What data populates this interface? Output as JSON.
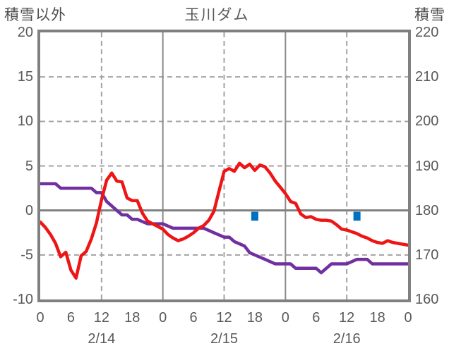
{
  "title": "玉川ダム",
  "left_axis": {
    "label": "積雪以外",
    "ticks": [
      "20",
      "15",
      "10",
      "5",
      "0",
      "-5",
      "-10"
    ],
    "min": -10,
    "max": 20
  },
  "right_axis": {
    "label": "積雪",
    "ticks": [
      "220",
      "210",
      "200",
      "190",
      "180",
      "170",
      "160"
    ],
    "min": 160,
    "max": 220
  },
  "x_axis": {
    "tick_labels": [
      "0",
      "6",
      "12",
      "18",
      "0",
      "6",
      "12",
      "18",
      "0",
      "6",
      "12",
      "18",
      "0"
    ],
    "tick_step_hours": 6,
    "date_labels": [
      "2/14",
      "2/15",
      "2/16"
    ],
    "hours_total": 72
  },
  "colors": {
    "temperature_line": "#ed1515",
    "snow_line": "#7030a0",
    "bar": "#0070c0",
    "border": "#808080",
    "grid_dashed": "#a3a3a3",
    "grid_solid": "#8c8c8c",
    "zero_line": "#808080",
    "text": "#595959"
  },
  "chart_data": {
    "type": "line",
    "title": "玉川ダム",
    "x_unit": "hour",
    "x_start": 0,
    "x_step": 1,
    "x_range_hours": [
      0,
      72
    ],
    "grid": {
      "h_dashed_left_values": [
        15,
        10,
        5,
        -5
      ],
      "h_solid_left_values": [
        0
      ],
      "v_dashed_hours": [
        12,
        36,
        60
      ],
      "v_solid_hours": [
        24,
        48
      ]
    },
    "series": [
      {
        "name": "積雪以外(折れ線・赤)",
        "axis": "left",
        "color": "#ed1515",
        "values": [
          -1.3,
          -1.9,
          -2.7,
          -3.7,
          -5.2,
          -4.7,
          -6.7,
          -7.6,
          -5.1,
          -4.6,
          -3.2,
          -1.4,
          1.2,
          3.4,
          4.2,
          3.3,
          3.2,
          1.4,
          1.1,
          1.1,
          -0.3,
          -1.2,
          -1.5,
          -1.8,
          -2.1,
          -2.7,
          -3.1,
          -3.4,
          -3.2,
          -2.9,
          -2.5,
          -2.0,
          -1.7,
          -1.1,
          -0.1,
          2.2,
          4.4,
          4.7,
          4.4,
          5.3,
          4.8,
          5.2,
          4.5,
          5.1,
          4.9,
          4.2,
          3.3,
          2.6,
          1.9,
          1.0,
          0.8,
          -0.4,
          -0.8,
          -0.7,
          -1.0,
          -1.1,
          -1.1,
          -1.2,
          -1.6,
          -2.1,
          -2.2,
          -2.4,
          -2.6,
          -2.9,
          -3.1,
          -3.4,
          -3.6,
          -3.7,
          -3.4,
          -3.6,
          -3.7,
          -3.8,
          -3.9
        ]
      },
      {
        "name": "積雪(折れ線・紫)",
        "axis": "right",
        "color": "#7030a0",
        "values": [
          186,
          186,
          186,
          186,
          185,
          185,
          185,
          185,
          185,
          185,
          185,
          184,
          184,
          182,
          181,
          180,
          179,
          179,
          178,
          178,
          177.5,
          177,
          177,
          177,
          177,
          176.5,
          176,
          176,
          176,
          176,
          176,
          176,
          176,
          175.5,
          175,
          174.5,
          174,
          174,
          173,
          172.5,
          172,
          170.5,
          170,
          169.5,
          169,
          168.5,
          168,
          168,
          168,
          168,
          167,
          167,
          167,
          167,
          167,
          166,
          167,
          168,
          168,
          168,
          168,
          168.5,
          169,
          169,
          169,
          168,
          168,
          168,
          168,
          168,
          168,
          168,
          168
        ]
      }
    ],
    "bars": {
      "name": "青色バー",
      "axis": "left",
      "color": "#0070c0",
      "hours": [
        42,
        62
      ],
      "top_left_value": -0.15,
      "bottom_left_value": -1.15
    },
    "left_axis_range": [
      -10,
      20
    ],
    "right_axis_range": [
      160,
      220
    ],
    "legend": "none"
  }
}
